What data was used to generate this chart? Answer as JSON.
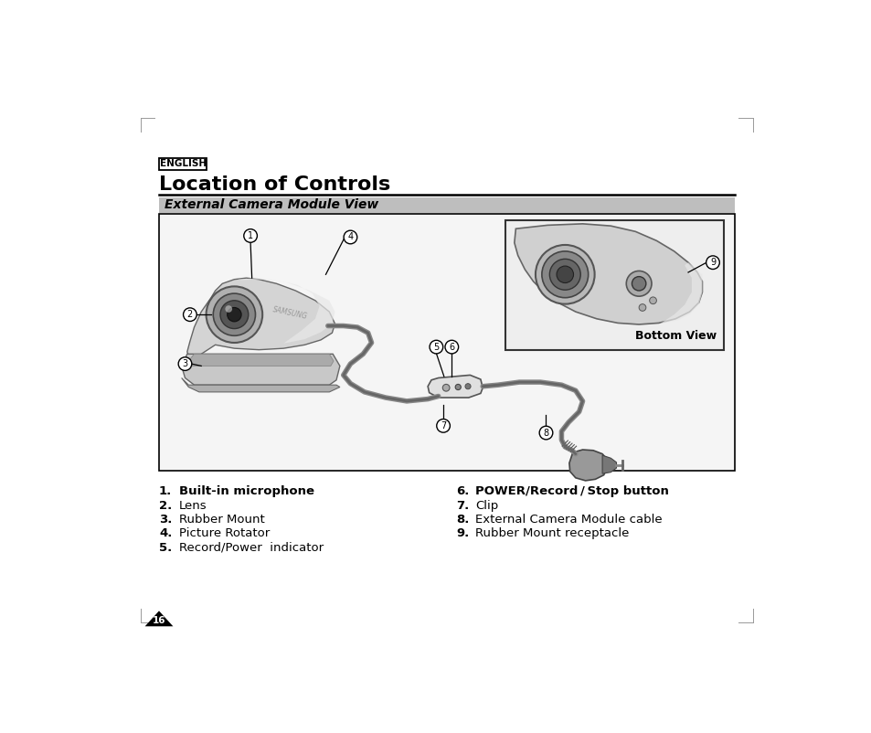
{
  "bg_color": "#ffffff",
  "english_label": "ENGLISH",
  "title": "Location of Controls",
  "subtitle": "External Camera Module View",
  "subtitle_bg": "#bebebe",
  "bottom_view_label": "Bottom View",
  "items_left": [
    [
      "1.",
      "Built-in microphone",
      true
    ],
    [
      "2.",
      "Lens",
      false
    ],
    [
      "3.",
      "Rubber Mount",
      false
    ],
    [
      "4.",
      "Picture Rotator",
      false
    ],
    [
      "5.",
      "Record/Power  indicator",
      false
    ]
  ],
  "items_right": [
    [
      "6.",
      "POWER/Record / Stop button",
      true
    ],
    [
      "7.",
      "Clip",
      false
    ],
    [
      "8.",
      "External Camera Module cable",
      false
    ],
    [
      "9.",
      "Rubber Mount receptacle",
      false
    ]
  ],
  "page_number": "16"
}
